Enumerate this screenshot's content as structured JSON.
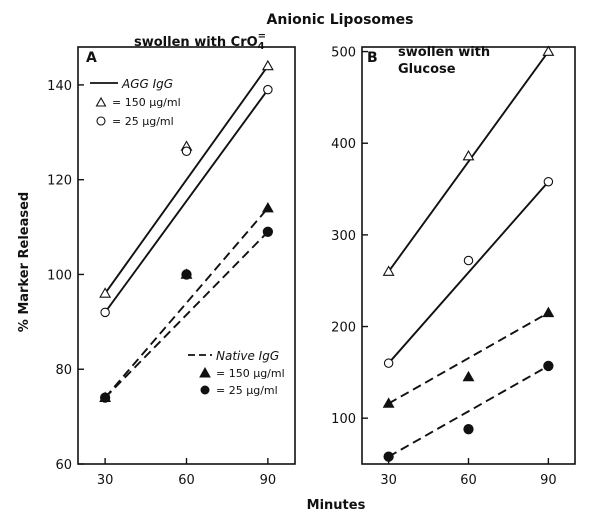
{
  "figure": {
    "title": "Anionic Liposomes",
    "ylabel": "% Marker Released",
    "xlabel": "Minutes"
  },
  "chart_data": [
    {
      "type": "line",
      "panel": "A",
      "subtitle_prefix": "swollen with CrO",
      "subtitle_sub": "4",
      "subtitle_sup": "=",
      "x": [
        30,
        60,
        90
      ],
      "xticks": [
        "30",
        "60",
        "90"
      ],
      "xlim": [
        20,
        100
      ],
      "ylim": [
        60,
        148
      ],
      "yticks": [
        "60",
        "80",
        "100",
        "120",
        "140"
      ],
      "legend_groups": [
        {
          "title": "AGG IgG",
          "style": "solid",
          "entries": [
            "= 150 µg/ml",
            "= 25 µg/ml"
          ],
          "placement": "top-left"
        },
        {
          "title": "Native IgG",
          "style": "dashed",
          "entries": [
            "= 150 µg/ml",
            "= 25 µg/ml"
          ],
          "placement": "bottom-right"
        }
      ],
      "series": [
        {
          "group": "AGG IgG",
          "conc": "150 µg/ml",
          "marker": "open-triangle",
          "line": "solid",
          "points": [
            [
              30,
              96
            ],
            [
              60,
              127
            ],
            [
              90,
              144
            ]
          ],
          "fit": [
            [
              30,
              96
            ],
            [
              90,
              144
            ]
          ]
        },
        {
          "group": "AGG IgG",
          "conc": "25 µg/ml",
          "marker": "open-circle",
          "line": "solid",
          "points": [
            [
              30,
              92
            ],
            [
              60,
              126
            ],
            [
              90,
              139
            ]
          ],
          "fit": [
            [
              30,
              92
            ],
            [
              90,
              139
            ]
          ]
        },
        {
          "group": "Native IgG",
          "conc": "150 µg/ml",
          "marker": "filled-triangle",
          "line": "dashed",
          "points": [
            [
              30,
              74
            ],
            [
              60,
              100
            ],
            [
              90,
              114
            ]
          ],
          "fit": [
            [
              30,
              74
            ],
            [
              90,
              114
            ]
          ]
        },
        {
          "group": "Native IgG",
          "conc": "25 µg/ml",
          "marker": "filled-circle",
          "line": "dashed",
          "points": [
            [
              30,
              74
            ],
            [
              60,
              100
            ],
            [
              90,
              109
            ]
          ],
          "fit": [
            [
              30,
              74
            ],
            [
              90,
              109
            ]
          ]
        }
      ]
    },
    {
      "type": "line",
      "panel": "B",
      "subtitle_line1": "swollen with",
      "subtitle_line2": "Glucose",
      "x": [
        30,
        60,
        90
      ],
      "xticks": [
        "30",
        "60",
        "90"
      ],
      "xlim": [
        20,
        100
      ],
      "ylim": [
        50,
        505
      ],
      "yticks": [
        "100",
        "200",
        "300",
        "400",
        "500"
      ],
      "series": [
        {
          "group": "AGG IgG",
          "conc": "150 µg/ml",
          "marker": "open-triangle",
          "line": "solid",
          "points": [
            [
              30,
              260
            ],
            [
              60,
              386
            ],
            [
              90,
              500
            ]
          ],
          "fit": [
            [
              30,
              260
            ],
            [
              90,
              500
            ]
          ]
        },
        {
          "group": "AGG IgG",
          "conc": "25 µg/ml",
          "marker": "open-circle",
          "line": "solid",
          "points": [
            [
              30,
              160
            ],
            [
              60,
              272
            ],
            [
              90,
              358
            ]
          ],
          "fit": [
            [
              30,
              160
            ],
            [
              90,
              358
            ]
          ]
        },
        {
          "group": "Native IgG",
          "conc": "150 µg/ml",
          "marker": "filled-triangle",
          "line": "dashed",
          "points": [
            [
              30,
              116
            ],
            [
              60,
              145
            ],
            [
              90,
              215
            ]
          ],
          "fit": [
            [
              30,
              116
            ],
            [
              90,
              215
            ]
          ]
        },
        {
          "group": "Native IgG",
          "conc": "25 µg/ml",
          "marker": "filled-circle",
          "line": "dashed",
          "points": [
            [
              30,
              58
            ],
            [
              60,
              88
            ],
            [
              90,
              157
            ]
          ],
          "fit": [
            [
              30,
              58
            ],
            [
              90,
              157
            ]
          ]
        }
      ]
    }
  ]
}
